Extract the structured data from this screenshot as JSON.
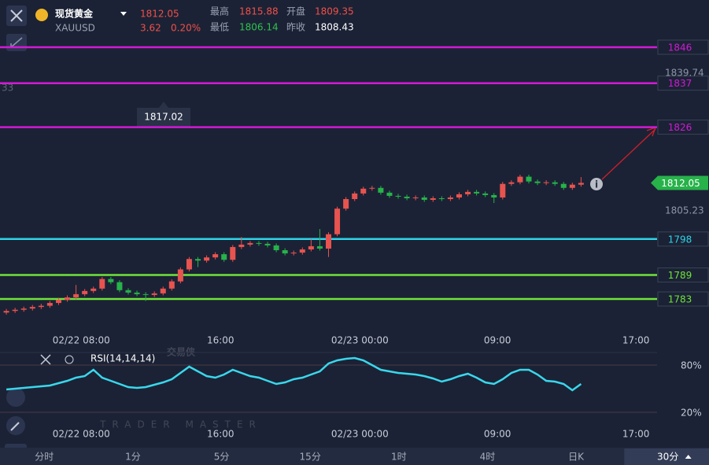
{
  "header": {
    "title": "现货黄金",
    "symbol": "XAUUSD",
    "price": "1812.05",
    "change": "3.62",
    "change_pct": "0.20%",
    "stats": [
      {
        "label": "最高",
        "value": "1815.88"
      },
      {
        "label": "开盘",
        "value": "1809.35"
      },
      {
        "label": "最低",
        "value": "1806.14"
      },
      {
        "label": "昨收",
        "value": "1808.43"
      }
    ]
  },
  "chart_data": [
    {
      "type": "candlestick",
      "up_color": "#e8534f",
      "down_color": "#27b24a",
      "xlim": [
        -0.73,
        74.73
      ],
      "xticks": [
        {
          "value": 8.6,
          "label": "02/22 08:00"
        },
        {
          "value": 24.6,
          "label": "16:00"
        },
        {
          "value": 40.6,
          "label": "02/23 00:00"
        },
        {
          "value": 56.4,
          "label": "09:00"
        },
        {
          "value": 72.3,
          "label": "17:00"
        }
      ],
      "ylim": [
        1779.06,
        1849.15
      ],
      "yticks": [
        1839.74,
        1805.23
      ],
      "open": [
        1779.6,
        1780.0,
        1780.3,
        1780.6,
        1781.0,
        1781.3,
        1782.0,
        1782.8,
        1783.4,
        1784.2,
        1785.0,
        1785.6,
        1788.0,
        1787.2,
        1785.2,
        1784.6,
        1784.2,
        1784.0,
        1784.4,
        1785.6,
        1787.4,
        1790.4,
        1793.0,
        1792.6,
        1793.4,
        1794.2,
        1792.8,
        1796.0,
        1796.6,
        1797.0,
        1796.8,
        1796.4,
        1795.2,
        1794.4,
        1794.6,
        1795.4,
        1796.2,
        1795.6,
        1799.2,
        1805.6,
        1808.0,
        1809.4,
        1810.6,
        1810.8,
        1809.6,
        1808.8,
        1808.6,
        1808.2,
        1808.4,
        1807.8,
        1808.2,
        1808.0,
        1808.4,
        1809.2,
        1809.8,
        1809.4,
        1809.0,
        1808.4,
        1811.8,
        1812.2,
        1813.6,
        1812.4,
        1812.0,
        1812.2,
        1811.8,
        1810.8,
        1811.6
      ],
      "high": [
        1780.5,
        1780.8,
        1781.1,
        1781.5,
        1781.8,
        1782.5,
        1783.3,
        1783.9,
        1786.5,
        1785.5,
        1786.1,
        1788.5,
        1788.5,
        1787.7,
        1785.7,
        1785.1,
        1784.7,
        1784.9,
        1786.1,
        1787.9,
        1790.9,
        1793.5,
        1793.5,
        1793.9,
        1794.7,
        1794.7,
        1796.5,
        1798.5,
        1797.5,
        1797.5,
        1797.3,
        1796.9,
        1795.7,
        1795.1,
        1795.9,
        1798.0,
        1800.5,
        1799.7,
        1806.1,
        1808.5,
        1809.9,
        1811.1,
        1811.3,
        1811.3,
        1810.1,
        1809.3,
        1809.1,
        1808.9,
        1808.9,
        1808.7,
        1808.7,
        1808.9,
        1809.7,
        1810.3,
        1810.3,
        1809.9,
        1809.5,
        1812.3,
        1812.7,
        1814.1,
        1814.1,
        1812.9,
        1812.7,
        1812.7,
        1812.3,
        1812.1,
        1813.5
      ],
      "low": [
        1779.1,
        1779.5,
        1779.8,
        1780.1,
        1780.5,
        1780.8,
        1781.5,
        1782.3,
        1782.9,
        1783.7,
        1784.5,
        1785.1,
        1786.7,
        1784.7,
        1784.1,
        1783.7,
        1782.5,
        1783.5,
        1783.9,
        1785.1,
        1786.9,
        1789.9,
        1791.0,
        1792.1,
        1792.9,
        1792.3,
        1792.3,
        1795.5,
        1796.1,
        1796.3,
        1795.9,
        1794.7,
        1793.9,
        1793.9,
        1794.1,
        1794.9,
        1795.1,
        1793.5,
        1798.7,
        1805.1,
        1807.5,
        1808.9,
        1810.1,
        1809.1,
        1808.3,
        1808.1,
        1807.7,
        1807.7,
        1807.3,
        1807.3,
        1807.5,
        1807.5,
        1807.9,
        1808.7,
        1808.9,
        1808.5,
        1807.0,
        1807.9,
        1811.3,
        1811.7,
        1811.9,
        1811.5,
        1811.5,
        1811.3,
        1810.3,
        1810.3,
        1811.1
      ],
      "close": [
        1780.0,
        1780.3,
        1780.6,
        1781.0,
        1781.3,
        1782.0,
        1782.8,
        1783.4,
        1784.2,
        1785.0,
        1785.6,
        1788.0,
        1787.2,
        1785.2,
        1784.6,
        1784.2,
        1784.0,
        1784.4,
        1785.6,
        1787.4,
        1790.4,
        1793.0,
        1792.6,
        1793.4,
        1794.2,
        1792.8,
        1796.0,
        1796.6,
        1797.0,
        1796.8,
        1796.4,
        1795.2,
        1794.4,
        1794.6,
        1795.4,
        1796.2,
        1795.6,
        1799.2,
        1805.6,
        1808.0,
        1809.4,
        1810.6,
        1810.8,
        1809.6,
        1808.8,
        1808.6,
        1808.2,
        1808.4,
        1807.8,
        1808.2,
        1808.0,
        1808.4,
        1809.2,
        1809.8,
        1809.4,
        1809.0,
        1808.4,
        1811.8,
        1812.2,
        1813.6,
        1812.4,
        1812.0,
        1812.2,
        1811.8,
        1810.8,
        1811.6,
        1812.05
      ],
      "levels": [
        {
          "value": 1846,
          "color": "#d21ad6"
        },
        {
          "value": 1837,
          "color": "#d21ad6"
        },
        {
          "value": 1826,
          "color": "#d21ad6"
        },
        {
          "value": 1798,
          "color": "#2fd3e8"
        },
        {
          "value": 1789,
          "color": "#6fe33a"
        },
        {
          "value": 1783,
          "color": "#6fe33a"
        }
      ],
      "current_price": 1812.05,
      "current_color": "#27b24a",
      "annotation": "1817.02"
    },
    {
      "type": "line",
      "title": "RSI(14,14,14)",
      "color": "#3ad7ec",
      "xlim": [
        -0.73,
        74.73
      ],
      "ylim": [
        4,
        94
      ],
      "yticks": [
        {
          "value": 80,
          "label": "80%"
        },
        {
          "value": 20,
          "label": "20%"
        }
      ],
      "values": [
        49,
        50,
        51,
        52,
        53,
        54,
        57,
        60,
        64,
        66,
        74,
        64,
        60,
        56,
        52,
        51,
        52,
        55,
        58,
        62,
        70,
        78,
        72,
        66,
        64,
        68,
        74,
        70,
        66,
        64,
        60,
        56,
        58,
        62,
        64,
        68,
        72,
        82,
        86,
        88,
        89,
        86,
        80,
        74,
        72,
        70,
        69,
        68,
        66,
        63,
        59,
        62,
        66,
        69,
        64,
        58,
        56,
        62,
        70,
        74,
        74,
        68,
        60,
        59,
        56,
        48,
        56
      ]
    }
  ],
  "tabs": [
    "分时",
    "1分",
    "5分",
    "15分",
    "1时",
    "4时",
    "日K",
    "30分"
  ],
  "selected_tab": 7,
  "watermark": {
    "cn": "交易侠",
    "en": "TRADER MASTER"
  },
  "edge_label": "33"
}
